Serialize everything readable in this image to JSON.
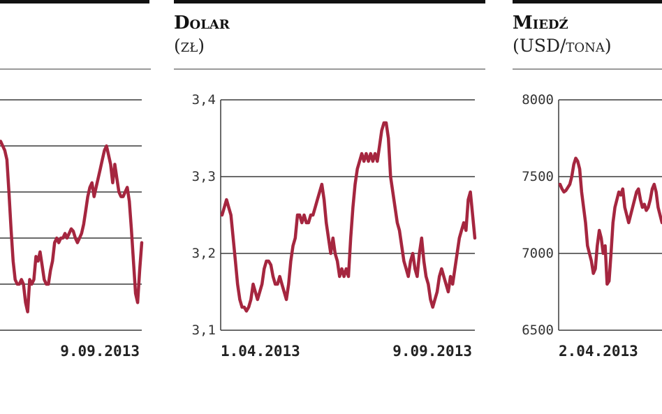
{
  "accent_color": "#a5263f",
  "charts": [
    {
      "title": "",
      "unit": "",
      "chart_data": {
        "type": "line",
        "title": "",
        "xlabel": "",
        "ylabel": "",
        "ylim": [
          0,
          5
        ],
        "yticks": [],
        "x_labels": [
          "",
          "9.09.2013"
        ],
        "grid": true,
        "series": [
          {
            "values": [
              4.0,
              4.05,
              4.1,
              4.0,
              3.9,
              3.7,
              3.0,
              2.2,
              1.5,
              1.1,
              1.0,
              1.0,
              1.1,
              1.0,
              0.6,
              0.4,
              1.1,
              1.0,
              1.1,
              1.6,
              1.5,
              1.7,
              1.4,
              1.1,
              1.0,
              1.0,
              1.3,
              1.5,
              1.9,
              2.0,
              1.9,
              2.0,
              2.0,
              2.1,
              2.0,
              2.1,
              2.2,
              2.15,
              2.0,
              1.9,
              2.0,
              2.1,
              2.3,
              2.6,
              2.9,
              3.1,
              3.2,
              2.9,
              3.1,
              3.3,
              3.5,
              3.7,
              3.9,
              4.0,
              3.8,
              3.6,
              3.2,
              3.6,
              3.3,
              3.0,
              2.9,
              2.9,
              3.0,
              3.1,
              2.8,
              2.2,
              1.5,
              0.8,
              0.6,
              1.3,
              1.9
            ]
          }
        ]
      }
    },
    {
      "title": "Dolar",
      "unit": "(zł)",
      "chart_data": {
        "type": "line",
        "title": "Dolar",
        "xlabel": "",
        "ylabel": "(zł)",
        "ylim": [
          3.1,
          3.4
        ],
        "yticks": [
          "3,4",
          "3,3",
          "3,2",
          "3,1"
        ],
        "x_labels": [
          "1.04.2013",
          "9.09.2013"
        ],
        "grid": true,
        "series": [
          {
            "values": [
              3.25,
              3.26,
              3.27,
              3.26,
              3.25,
              3.22,
              3.19,
              3.16,
              3.14,
              3.13,
              3.13,
              3.125,
              3.13,
              3.14,
              3.16,
              3.15,
              3.14,
              3.15,
              3.16,
              3.18,
              3.19,
              3.19,
              3.185,
              3.17,
              3.16,
              3.16,
              3.17,
              3.16,
              3.15,
              3.14,
              3.16,
              3.19,
              3.21,
              3.22,
              3.25,
              3.25,
              3.24,
              3.25,
              3.24,
              3.24,
              3.25,
              3.25,
              3.26,
              3.27,
              3.28,
              3.29,
              3.27,
              3.24,
              3.22,
              3.2,
              3.22,
              3.2,
              3.19,
              3.17,
              3.18,
              3.17,
              3.18,
              3.17,
              3.22,
              3.26,
              3.29,
              3.31,
              3.32,
              3.33,
              3.32,
              3.33,
              3.32,
              3.33,
              3.32,
              3.33,
              3.32,
              3.34,
              3.36,
              3.37,
              3.37,
              3.35,
              3.3,
              3.28,
              3.26,
              3.24,
              3.23,
              3.21,
              3.19,
              3.18,
              3.17,
              3.19,
              3.2,
              3.18,
              3.17,
              3.2,
              3.22,
              3.19,
              3.17,
              3.16,
              3.14,
              3.13,
              3.14,
              3.15,
              3.17,
              3.18,
              3.17,
              3.16,
              3.15,
              3.17,
              3.16,
              3.18,
              3.2,
              3.22,
              3.23,
              3.24,
              3.23,
              3.27,
              3.28,
              3.25,
              3.22
            ]
          }
        ]
      }
    },
    {
      "title": "Miedź",
      "unit": "(USD/tona)",
      "chart_data": {
        "type": "line",
        "title": "Miedź",
        "xlabel": "",
        "ylabel": "(USD/tona)",
        "ylim": [
          6500,
          8000
        ],
        "yticks": [
          "8000",
          "7500",
          "7000",
          "6500"
        ],
        "x_labels": [
          "2.04.2013",
          ""
        ],
        "grid": true,
        "series": [
          {
            "values": [
              7450,
              7420,
              7400,
              7410,
              7430,
              7450,
              7500,
              7580,
              7620,
              7600,
              7550,
              7400,
              7300,
              7200,
              7050,
              7000,
              6950,
              6870,
              6900,
              7050,
              7150,
              7100,
              7000,
              7050,
              6800,
              6820,
              7000,
              7200,
              7300,
              7350,
              7400,
              7380,
              7420,
              7300,
              7250,
              7200,
              7250,
              7300,
              7350,
              7400,
              7420,
              7350,
              7300,
              7320,
              7280,
              7300,
              7350,
              7420,
              7450,
              7400,
              7300,
              7250,
              7200
            ]
          }
        ]
      }
    }
  ]
}
